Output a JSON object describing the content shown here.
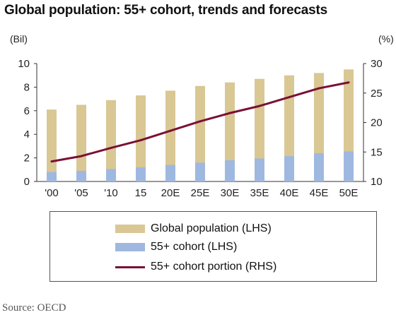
{
  "title": "Global population: 55+ cohort, trends and forecasts",
  "source": "Source: OECD",
  "colors": {
    "global_population": "#d9c794",
    "cohort_55": "#9fb8e0",
    "cohort_portion_line": "#7a1035",
    "axis": "#333333"
  },
  "chart_data": {
    "type": "bar",
    "categories": [
      "'00",
      "'05",
      "'10",
      "15",
      "20E",
      "25E",
      "30E",
      "35E",
      "40E",
      "45E",
      "50E"
    ],
    "left_axis": {
      "unit": "(Bil)",
      "ylim": [
        0,
        10
      ],
      "ticks": [
        0,
        2,
        4,
        6,
        8,
        10
      ]
    },
    "right_axis": {
      "unit": "(%)",
      "ylim": [
        10,
        30
      ],
      "ticks": [
        10,
        15,
        20,
        25,
        30
      ]
    },
    "series": [
      {
        "name": "Global population (LHS)",
        "type": "bar",
        "axis": "left",
        "values": [
          6.1,
          6.5,
          6.9,
          7.3,
          7.7,
          8.1,
          8.4,
          8.7,
          9.0,
          9.2,
          9.5
        ]
      },
      {
        "name": "55+ cohort (LHS)",
        "type": "bar",
        "axis": "left",
        "values": [
          0.8,
          0.9,
          1.05,
          1.2,
          1.4,
          1.6,
          1.8,
          1.95,
          2.15,
          2.4,
          2.55
        ]
      },
      {
        "name": "55+ cohort portion (RHS)",
        "type": "line",
        "axis": "right",
        "values": [
          13.4,
          14.3,
          15.7,
          17.0,
          18.6,
          20.2,
          21.6,
          22.8,
          24.3,
          25.8,
          26.8
        ]
      }
    ],
    "grid": false,
    "legend_position": "bottom"
  }
}
